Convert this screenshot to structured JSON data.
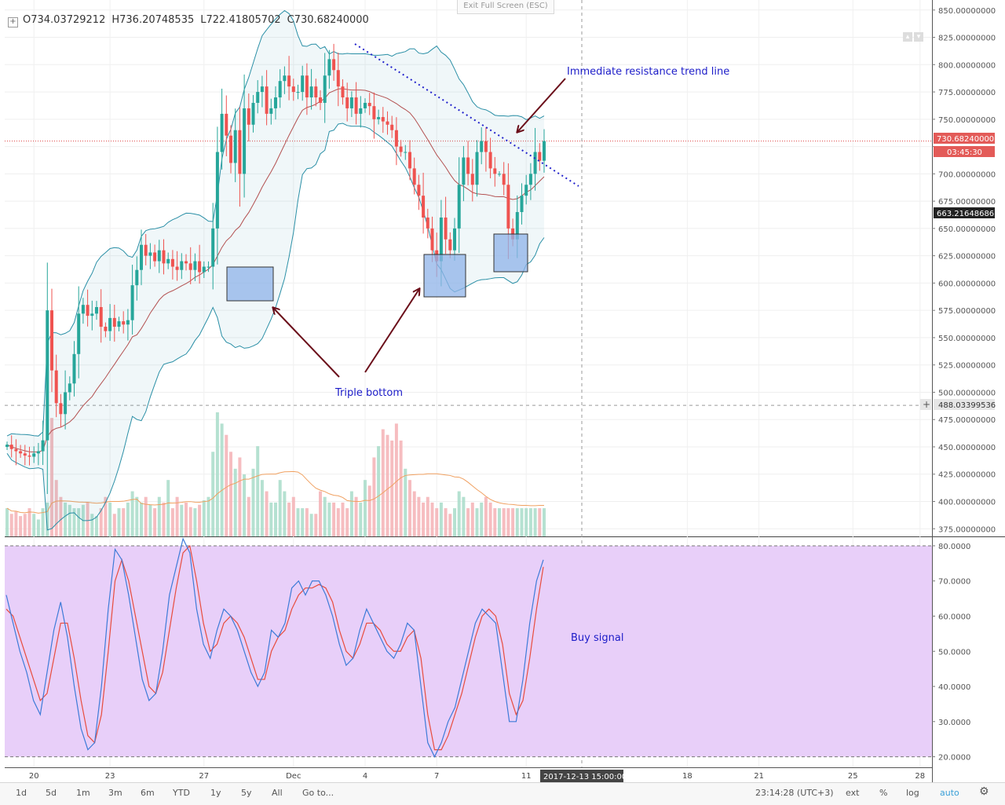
{
  "legend": {
    "open": "O734.03729212",
    "high": "H736.20748535",
    "low": "L722.41805702",
    "close": "C730.68240000"
  },
  "toolbar": {
    "exit_fullscreen": "Exit Full Screen (ESC)"
  },
  "price_axis_labels": [
    "850.00000000",
    "825.00000000",
    "800.00000000",
    "775.00000000",
    "750.00000000",
    "725.00000000",
    "700.00000000",
    "675.00000000",
    "650.00000000",
    "625.00000000",
    "600.00000000",
    "575.00000000",
    "550.00000000",
    "525.00000000",
    "500.00000000",
    "475.00000000",
    "450.00000000",
    "425.00000000",
    "400.00000000",
    "375.00000000"
  ],
  "price_badges": {
    "last": "730.68240000",
    "countdown": "03:45:30",
    "mid": "663.21648686",
    "crosshair": "488.03399536"
  },
  "stoch_axis_labels": [
    "80.0000",
    "70.0000",
    "60.0000",
    "50.0000",
    "40.0000",
    "30.0000",
    "20.0000"
  ],
  "time_axis_labels": [
    "20",
    "23",
    "27",
    "Dec",
    "4",
    "7",
    "11",
    "18",
    "21",
    "25",
    "28"
  ],
  "crosshair_time": "2017-12-13 15:00:00",
  "annotations": {
    "resistance": "Immediate resistance trend line",
    "triple_bottom": "Triple bottom",
    "buy_signal": "Buy signal"
  },
  "bottom_bar": {
    "ranges": [
      "1d",
      "5d",
      "1m",
      "3m",
      "6m",
      "YTD",
      "1y",
      "5y",
      "All"
    ],
    "goto": "Go to...",
    "clock": "23:14:28 (UTC+3)",
    "options": [
      "ext",
      "%",
      "log",
      "auto"
    ],
    "gear_icon": "gear-icon"
  },
  "colors": {
    "up": "#26a69a",
    "down": "#ef5350",
    "bollinger_band": "#2a8fa6",
    "bollinger_basis": "#b35050",
    "stoch_k": "#3d7bd8",
    "stoch_d": "#e84c3d",
    "stoch_bg": "#e8cff9",
    "annotation_text": "#1c1cc8",
    "arrow": "#6b0f1a",
    "box": "#8fb3e8"
  },
  "chart_data": {
    "type": "candlestick",
    "price_range": [
      368,
      852
    ],
    "closes": [
      452,
      448,
      446,
      444,
      442,
      441,
      444,
      446,
      456,
      575,
      520,
      490,
      480,
      500,
      508,
      535,
      572,
      580,
      570,
      572,
      578,
      560,
      556,
      568,
      560,
      565,
      562,
      566,
      598,
      612,
      635,
      625,
      628,
      620,
      630,
      618,
      622,
      615,
      612,
      620,
      618,
      612,
      620,
      610,
      615,
      615,
      650,
      720,
      755,
      735,
      710,
      740,
      700,
      760,
      745,
      765,
      775,
      780,
      755,
      760,
      770,
      785,
      790,
      780,
      775,
      775,
      790,
      770,
      780,
      770,
      765,
      790,
      805,
      795,
      780,
      770,
      760,
      770,
      755,
      760,
      765,
      762,
      750,
      752,
      748,
      745,
      740,
      725,
      720,
      720,
      705,
      690,
      680,
      660,
      650,
      630,
      620,
      660,
      640,
      630,
      650,
      690,
      715,
      700,
      690,
      720,
      730,
      720,
      705,
      700,
      700,
      690,
      650,
      640,
      665,
      680,
      690,
      700,
      720,
      712,
      730
    ],
    "volume_scale_max": 480,
    "volumes": [
      395,
      390,
      392,
      388,
      390,
      395,
      390,
      385,
      395,
      400,
      475,
      420,
      405,
      400,
      398,
      395,
      395,
      398,
      400,
      390,
      388,
      395,
      405,
      400,
      390,
      395,
      395,
      400,
      410,
      405,
      400,
      405,
      398,
      395,
      405,
      400,
      420,
      395,
      405,
      398,
      400,
      396,
      395,
      398,
      402,
      405,
      445,
      480,
      470,
      460,
      445,
      430,
      440,
      425,
      405,
      430,
      450,
      420,
      410,
      400,
      400,
      420,
      410,
      400,
      405,
      395,
      395,
      395,
      390,
      390,
      410,
      405,
      400,
      400,
      395,
      400,
      395,
      410,
      405,
      400,
      420,
      415,
      440,
      450,
      465,
      460,
      455,
      470,
      455,
      430,
      420,
      410,
      405,
      400,
      405,
      400,
      395,
      400,
      395,
      390,
      395,
      410,
      405,
      395,
      400,
      395,
      400,
      405,
      400,
      395,
      395,
      395,
      395,
      395,
      395,
      395,
      395,
      395,
      395,
      395,
      395
    ],
    "stoch_range": [
      17,
      82
    ],
    "stoch_k": [
      66,
      58,
      50,
      44,
      36,
      32,
      44,
      56,
      64,
      54,
      40,
      28,
      22,
      24,
      40,
      62,
      79,
      76,
      66,
      54,
      42,
      36,
      38,
      50,
      66,
      74,
      82,
      78,
      62,
      52,
      48,
      56,
      62,
      60,
      56,
      50,
      44,
      40,
      44,
      56,
      54,
      58,
      68,
      70,
      66,
      70,
      70,
      66,
      60,
      52,
      46,
      48,
      56,
      62,
      58,
      54,
      50,
      48,
      52,
      58,
      56,
      40,
      24,
      20,
      24,
      30,
      34,
      42,
      50,
      58,
      62,
      60,
      58,
      44,
      30,
      30,
      42,
      58,
      70,
      76
    ],
    "stoch_d": [
      62,
      60,
      54,
      48,
      42,
      36,
      38,
      48,
      58,
      58,
      48,
      36,
      26,
      24,
      32,
      50,
      70,
      76,
      70,
      60,
      50,
      40,
      38,
      44,
      56,
      68,
      78,
      80,
      70,
      58,
      50,
      52,
      58,
      60,
      58,
      54,
      48,
      42,
      42,
      50,
      54,
      56,
      62,
      66,
      68,
      68,
      69,
      68,
      64,
      56,
      50,
      48,
      52,
      58,
      58,
      56,
      52,
      50,
      50,
      54,
      56,
      48,
      32,
      22,
      22,
      26,
      32,
      38,
      46,
      54,
      60,
      62,
      60,
      52,
      38,
      32,
      36,
      48,
      62,
      74
    ]
  }
}
